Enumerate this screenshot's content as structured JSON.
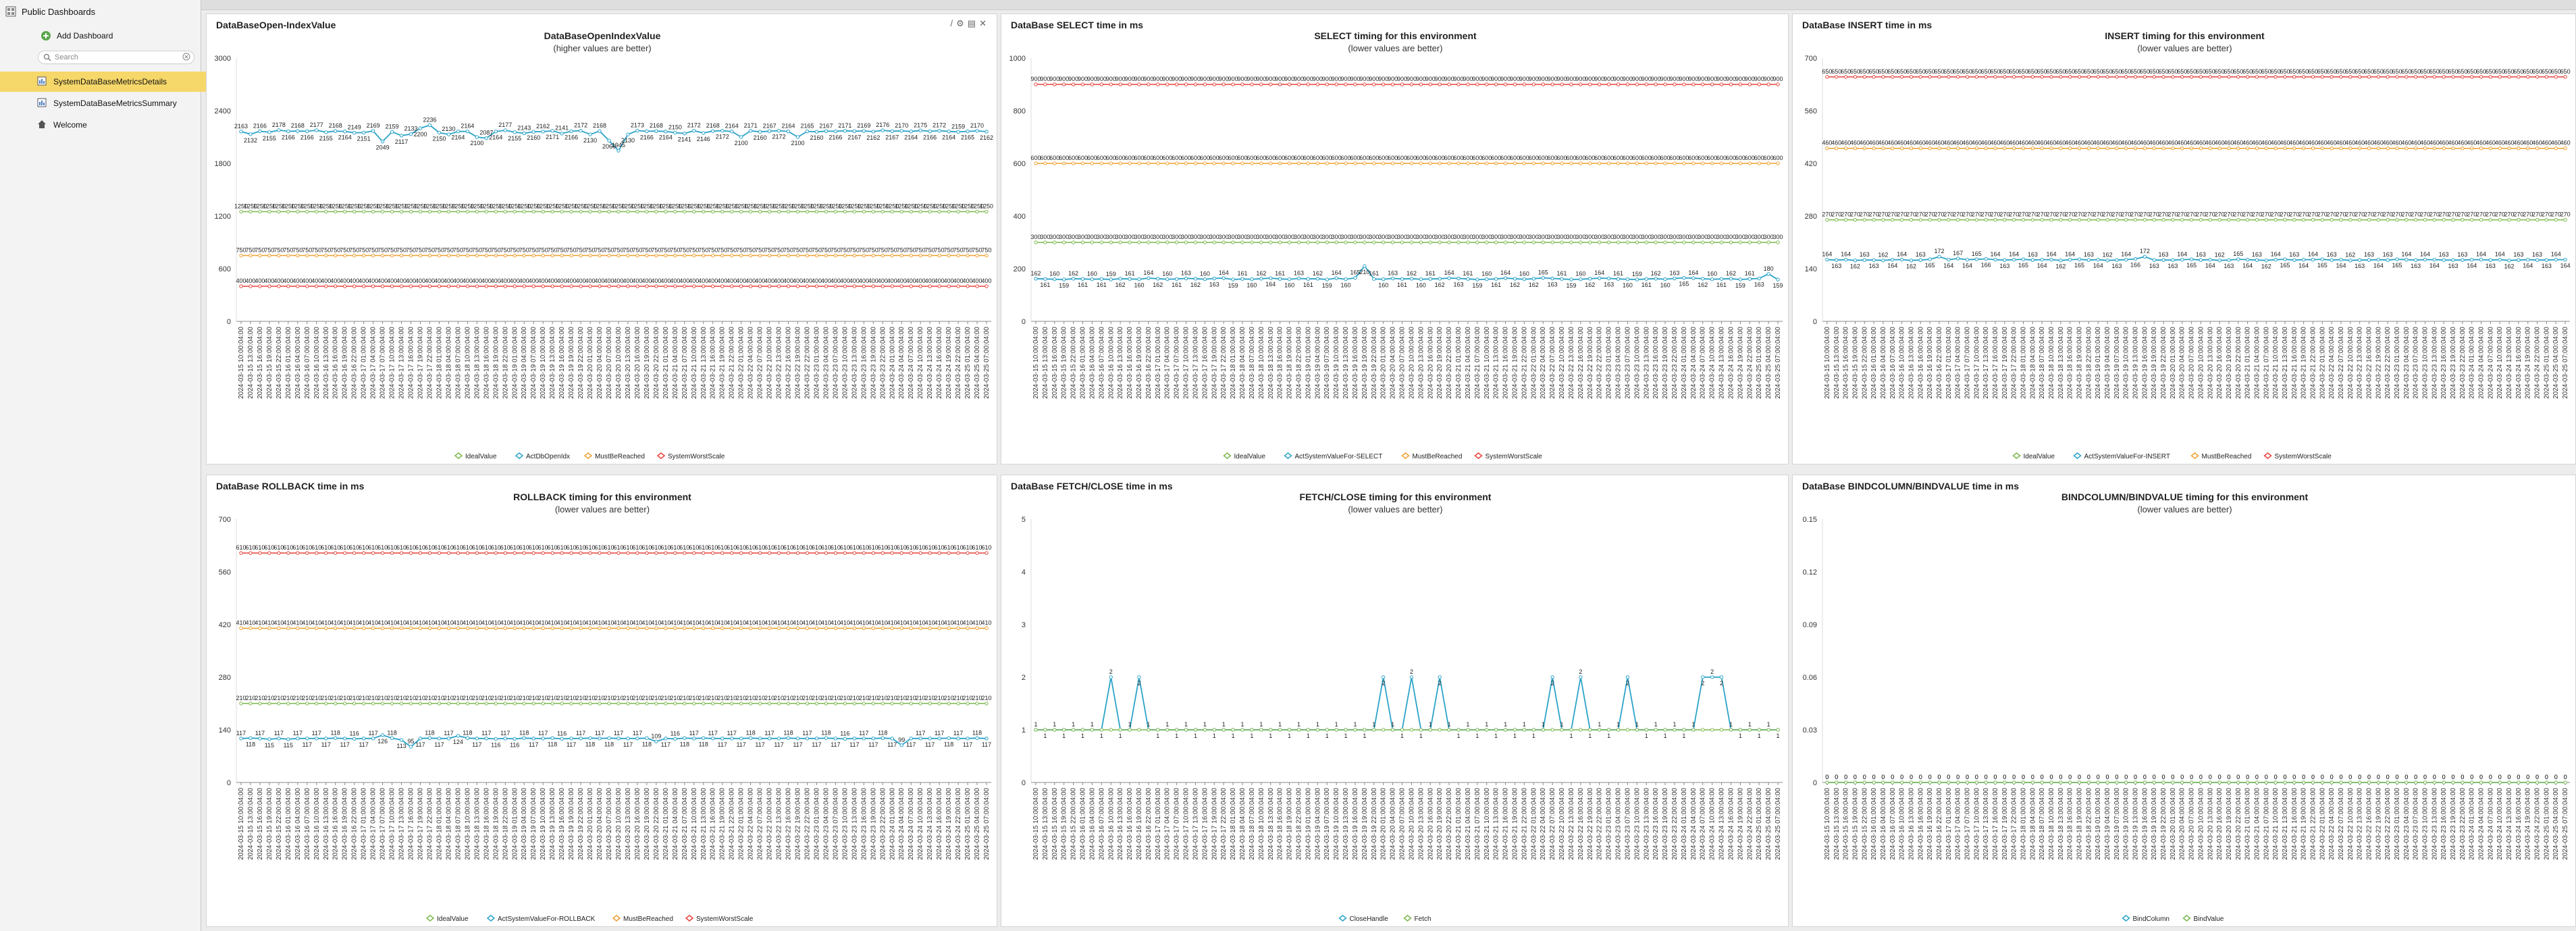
{
  "sidebar": {
    "root_label": "Public Dashboards",
    "add_label": "Add Dashboard",
    "search_placeholder": "Search",
    "items": [
      {
        "label": "SystemDataBaseMetricsDetails",
        "selected": true
      },
      {
        "label": "SystemDataBaseMetricsSummary",
        "selected": false
      },
      {
        "label": "Welcome",
        "selected": false
      }
    ]
  },
  "icons": {
    "root": "dashboard-grid-icon",
    "add": "plus-icon",
    "search": "search-icon",
    "clear": "clear-icon",
    "item": "dashboard-icon",
    "welcome": "home-icon",
    "panel_tools": [
      "edit-icon",
      "settings-icon",
      "print-icon",
      "close-icon"
    ]
  },
  "colors": {
    "selected": "#f6d769",
    "IdealValue": "#7cb84e",
    "Actual": "#2ba3c9",
    "MustBeReached": "#f0a030",
    "SystemWorstScale": "#e8433b",
    "CloseHandle": "#2ba3c9",
    "Fetch": "#7cb84e",
    "BindColumn": "#2ba3c9",
    "BindValue": "#7cb84e"
  },
  "x_axis": {
    "start": "2024-03-15 10:00:04:00",
    "step_hours": 3,
    "count": 80,
    "label_format": "yyyy-mm-dd hh:00:04:00"
  },
  "panels": [
    {
      "title": "DataBaseOpen-IndexValue",
      "tools": [
        "/",
        "⚙",
        "▤",
        "✕"
      ],
      "chart_data": {
        "type": "line",
        "title": "DataBaseOpenIndexValue",
        "subtitle": "(higher values are better)",
        "ylim": [
          0,
          3000
        ],
        "yticks": [
          0,
          600,
          1200,
          1800,
          2400,
          3000
        ],
        "series": [
          {
            "name": "IdealValue",
            "colorKey": "IdealValue",
            "constant": 1250,
            "label": "1250"
          },
          {
            "name": "ActDbOpenIdx",
            "colorKey": "Actual",
            "values": [
              2163,
              2132,
              2166,
              2155,
              2178,
              2166,
              2168,
              2166,
              2177,
              2155,
              2168,
              2164,
              2149,
              2151,
              2169,
              2049,
              2159,
              2117,
              2133,
              2200,
              2236,
              2150,
              2130,
              2164,
              2164,
              2100,
              2087,
              2164,
              2177,
              2155,
              2143,
              2160,
              2162,
              2171,
              2141,
              2166,
              2172,
              2130,
              2168,
              2060,
              1945,
              2130,
              2173,
              2166,
              2168,
              2164,
              2150,
              2141,
              2172,
              2146,
              2168,
              2172,
              2164,
              2100,
              2171,
              2160,
              2167,
              2172,
              2164,
              2100,
              2165,
              2160,
              2167,
              2166,
              2171,
              2167,
              2169,
              2162,
              2176,
              2167,
              2170,
              2164,
              2175,
              2166,
              2172,
              2164,
              2159,
              2165,
              2170,
              2162
            ]
          },
          {
            "name": "MustBeReached",
            "colorKey": "MustBeReached",
            "constant": 750,
            "label": "750"
          },
          {
            "name": "SystemWorstScale",
            "colorKey": "SystemWorstScale",
            "constant": 400,
            "label": "400"
          }
        ]
      }
    },
    {
      "title": "DataBase SELECT time in ms",
      "tools": [],
      "chart_data": {
        "type": "line",
        "title": "SELECT timing for this environment",
        "subtitle": "(lower values are better)",
        "ylim": [
          0,
          1000
        ],
        "yticks": [
          0,
          200,
          400,
          600,
          800,
          1000
        ],
        "series": [
          {
            "name": "IdealValue",
            "colorKey": "IdealValue",
            "constant": 300,
            "label": "300"
          },
          {
            "name": "ActSystemValueFor-SELECT",
            "colorKey": "Actual",
            "values": [
              162,
              161,
              160,
              159,
              162,
              161,
              160,
              161,
              159,
              162,
              161,
              160,
              164,
              162,
              160,
              161,
              163,
              162,
              160,
              163,
              164,
              159,
              161,
              160,
              162,
              164,
              161,
              160,
              163,
              161,
              162,
              159,
              164,
              160,
              165,
              210,
              161,
              160,
              163,
              161,
              162,
              160,
              161,
              162,
              164,
              163,
              161,
              159,
              160,
              161,
              164,
              162,
              160,
              162,
              165,
              163,
              161,
              159,
              160,
              162,
              164,
              163,
              161,
              160,
              159,
              161,
              162,
              160,
              163,
              165,
              164,
              162,
              160,
              161,
              162,
              159,
              161,
              163,
              180,
              159
            ]
          },
          {
            "name": "MustBeReached",
            "colorKey": "MustBeReached",
            "constant": 600,
            "label": "600"
          },
          {
            "name": "SystemWorstScale",
            "colorKey": "SystemWorstScale",
            "constant": 900,
            "label": "900"
          }
        ]
      }
    },
    {
      "title": "DataBase INSERT time in ms",
      "tools": [],
      "chart_data": {
        "type": "line",
        "title": "INSERT timing for this environment",
        "subtitle": "(lower values are better)",
        "ylim": [
          0,
          700
        ],
        "yticks": [
          0,
          140,
          280,
          420,
          560,
          700
        ],
        "series": [
          {
            "name": "IdealValue",
            "colorKey": "IdealValue",
            "constant": 270,
            "label": "270"
          },
          {
            "name": "ActSystemValueFor-INSERT",
            "colorKey": "Actual",
            "values": [
              164,
              163,
              164,
              162,
              163,
              163,
              162,
              164,
              164,
              162,
              163,
              165,
              172,
              164,
              167,
              164,
              165,
              166,
              164,
              163,
              164,
              165,
              163,
              164,
              164,
              162,
              164,
              165,
              163,
              164,
              162,
              163,
              164,
              166,
              172,
              163,
              163,
              163,
              164,
              165,
              163,
              164,
              162,
              163,
              165,
              164,
              163,
              162,
              164,
              165,
              163,
              164,
              164,
              165,
              163,
              164,
              162,
              163,
              163,
              164,
              163,
              165,
              164,
              163,
              164,
              164,
              163,
              163,
              163,
              164,
              164,
              163,
              164,
              162,
              163,
              164,
              163,
              163,
              164,
              164
            ]
          },
          {
            "name": "MustBeReached",
            "colorKey": "MustBeReached",
            "constant": 460,
            "label": "460"
          },
          {
            "name": "SystemWorstScale",
            "colorKey": "SystemWorstScale",
            "constant": 650,
            "label": "650"
          }
        ]
      }
    },
    {
      "title": "DataBase ROLLBACK time in ms",
      "tools": [],
      "chart_data": {
        "type": "line",
        "title": "ROLLBACK timing for this environment",
        "subtitle": "(lower values are better)",
        "ylim": [
          0,
          700
        ],
        "yticks": [
          0,
          140,
          280,
          420,
          560,
          700
        ],
        "series": [
          {
            "name": "IdealValue",
            "colorKey": "IdealValue",
            "constant": 210,
            "label": "210"
          },
          {
            "name": "ActSystemValueFor-ROLLBACK",
            "colorKey": "Actual",
            "values": [
              117,
              118,
              117,
              115,
              117,
              115,
              117,
              117,
              117,
              117,
              118,
              117,
              116,
              117,
              117,
              126,
              118,
              113,
              95,
              117,
              118,
              117,
              117,
              124,
              118,
              117,
              117,
              116,
              117,
              116,
              118,
              117,
              117,
              118,
              116,
              117,
              117,
              118,
              117,
              118,
              117,
              117,
              117,
              118,
              109,
              117,
              116,
              118,
              117,
              118,
              117,
              117,
              117,
              117,
              118,
              117,
              117,
              117,
              118,
              117,
              117,
              117,
              118,
              117,
              116,
              117,
              117,
              117,
              118,
              117,
              99,
              117,
              117,
              117,
              117,
              118,
              117,
              117,
              118,
              117
            ]
          },
          {
            "name": "MustBeReached",
            "colorKey": "MustBeReached",
            "constant": 410,
            "label": "410"
          },
          {
            "name": "SystemWorstScale",
            "colorKey": "SystemWorstScale",
            "constant": 610,
            "label": "610"
          }
        ]
      }
    },
    {
      "title": "DataBase FETCH/CLOSE time in ms",
      "tools": [],
      "chart_data": {
        "type": "line",
        "title": "FETCH/CLOSE timing for this environment",
        "subtitle": "(lower values are better)",
        "ylim": [
          0,
          5
        ],
        "yticks": [
          0,
          1,
          2,
          3,
          4,
          5
        ],
        "series": [
          {
            "name": "CloseHandle",
            "colorKey": "CloseHandle",
            "values": [
              1,
              1,
              1,
              1,
              1,
              1,
              1,
              1,
              2,
              1,
              1,
              2,
              1,
              1,
              1,
              1,
              1,
              1,
              1,
              1,
              1,
              1,
              1,
              1,
              1,
              1,
              1,
              1,
              1,
              1,
              1,
              1,
              1,
              1,
              1,
              1,
              1,
              2,
              1,
              1,
              2,
              1,
              1,
              2,
              1,
              1,
              1,
              1,
              1,
              1,
              1,
              1,
              1,
              1,
              1,
              2,
              1,
              1,
              2,
              1,
              1,
              1,
              1,
              2,
              1,
              1,
              1,
              1,
              1,
              1,
              1,
              2,
              2,
              2,
              1,
              1,
              1,
              1,
              1,
              1
            ]
          },
          {
            "name": "Fetch",
            "colorKey": "Fetch",
            "constant": 1
          }
        ]
      }
    },
    {
      "title": "DataBase BINDCOLUMN/BINDVALUE time in ms",
      "tools": [],
      "chart_data": {
        "type": "line",
        "title": "BINDCOLUMN/BINDVALUE timing for this environment",
        "subtitle": "(lower values are better)",
        "ylim": [
          0,
          0.15
        ],
        "yticks": [
          0,
          0.03,
          0.06,
          0.09,
          0.12,
          0.15
        ],
        "series": [
          {
            "name": "BindColumn",
            "colorKey": "BindColumn",
            "constant": 0,
            "label": "0"
          },
          {
            "name": "BindValue",
            "colorKey": "BindValue",
            "constant": 0,
            "label": "0"
          }
        ]
      }
    }
  ]
}
